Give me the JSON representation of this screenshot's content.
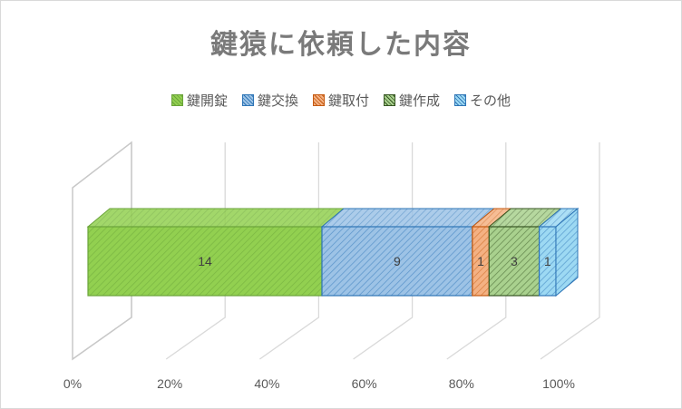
{
  "chart_data": {
    "type": "bar",
    "orientation": "horizontal-stacked-100-3d",
    "title": "鍵猿に依頼した内容",
    "series": [
      {
        "name": "鍵開錠",
        "value": 14,
        "color": "#92d050",
        "edge": "#6aa33a"
      },
      {
        "name": "鍵交換",
        "value": 9,
        "color": "#9dc3e6",
        "edge": "#2e75b6"
      },
      {
        "name": "鍵取付",
        "value": 1,
        "color": "#f4b183",
        "edge": "#c55a11"
      },
      {
        "name": "鍵作成",
        "value": 3,
        "color": "#a9d18e",
        "edge": "#375623"
      },
      {
        "name": "その他",
        "value": 1,
        "color": "#9dd9f3",
        "edge": "#2e75b6"
      }
    ],
    "x_ticks": [
      "0%",
      "20%",
      "40%",
      "60%",
      "80%",
      "100%"
    ],
    "xlim": [
      0,
      100
    ],
    "legend": "top",
    "grid": true
  }
}
